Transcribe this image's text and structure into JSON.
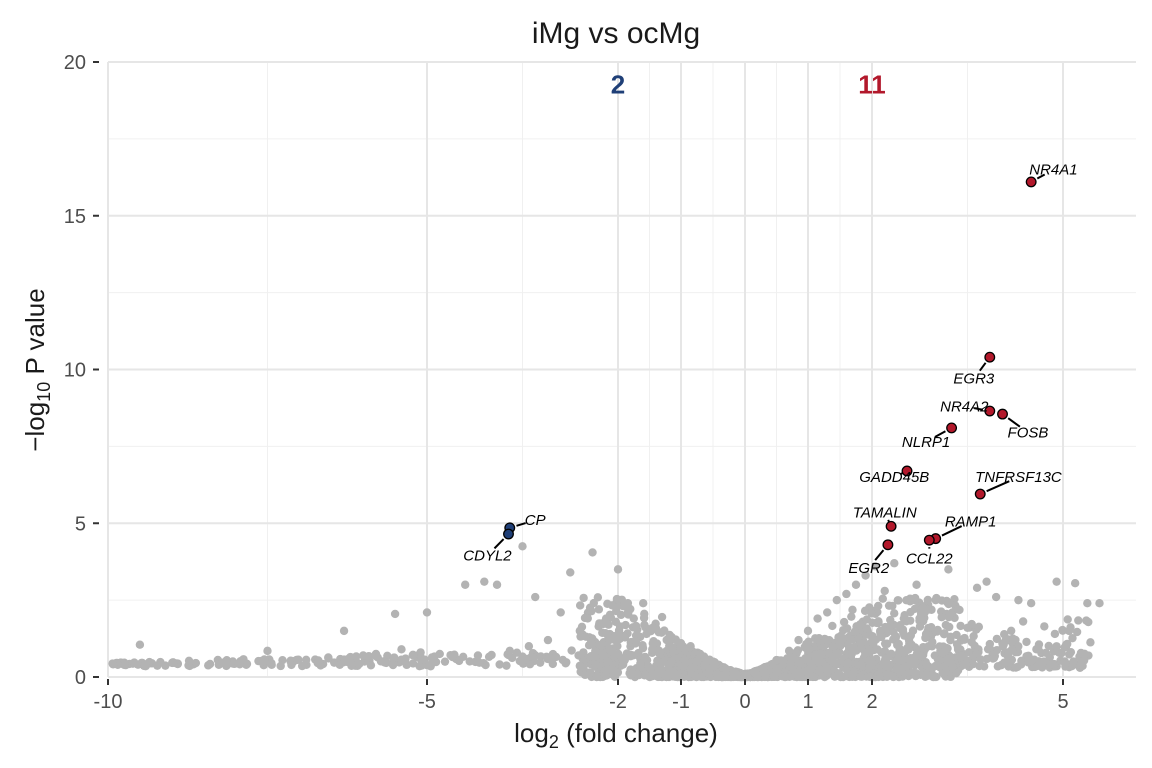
{
  "chart_data": {
    "type": "scatter",
    "title": "iMg vs ocMg",
    "xlabel": {
      "base": "log",
      "sub": "2",
      "rest": " (fold change)"
    },
    "ylabel": {
      "base": "−log",
      "sub": "10",
      "rest": " P value"
    },
    "xlim": [
      -10.2,
      6.2
    ],
    "ylim": [
      0,
      20
    ],
    "x_major_ticks": [
      -10,
      -5,
      -2,
      -1,
      0,
      1,
      2,
      5
    ],
    "x_minor_ticks": [
      -7.5,
      -3.5,
      -1.5,
      -0.5,
      0.5,
      1.5,
      3.5
    ],
    "y_major_ticks": [
      0,
      5,
      10,
      15,
      20
    ],
    "y_minor_ticks": [
      2.5,
      7.5,
      12.5,
      17.5
    ],
    "grid": true,
    "legend": "none",
    "colors": {
      "up": "#b2182b",
      "down": "#1f3f77",
      "ns": "#b3b3b3"
    },
    "counts": [
      {
        "text": "2",
        "x": -2,
        "y": 19.3,
        "color": "#1f3f77"
      },
      {
        "text": "11",
        "x": 2,
        "y": 19.3,
        "color": "#b2182b"
      }
    ],
    "series": [
      {
        "name": "up",
        "color": "#b2182b",
        "points": [
          {
            "gene": "NR4A1",
            "x": 4.5,
            "y": 16.1,
            "label": "NR4A1",
            "lx": 4.85,
            "ly": 16.5
          },
          {
            "gene": "EGR3",
            "x": 3.85,
            "y": 10.4,
            "label": "EGR3",
            "lx": 3.6,
            "ly": 9.7
          },
          {
            "gene": "NR4A2",
            "x": 3.85,
            "y": 8.65,
            "label": "NR4A2",
            "lx": 3.45,
            "ly": 8.8
          },
          {
            "gene": "FOSB",
            "x": 4.05,
            "y": 8.55,
            "label": "FOSB",
            "lx": 4.45,
            "ly": 7.95
          },
          {
            "gene": "NLRP1",
            "x": 3.25,
            "y": 8.1,
            "label": "NLRP1",
            "lx": 2.85,
            "ly": 7.65
          },
          {
            "gene": "GADD45B",
            "x": 2.55,
            "y": 6.7,
            "label": "GADD45B",
            "lx": 2.35,
            "ly": 6.5
          },
          {
            "gene": "TNFRSF13C",
            "x": 3.7,
            "y": 5.95,
            "label": "TNFRSF13C",
            "lx": 4.3,
            "ly": 6.5
          },
          {
            "gene": "TAMALIN",
            "x": 2.3,
            "y": 4.9,
            "label": "TAMALIN",
            "lx": 2.2,
            "ly": 5.35
          },
          {
            "gene": "RAMP1",
            "x": 3.0,
            "y": 4.5,
            "label": "RAMP1",
            "lx": 3.55,
            "ly": 5.05
          },
          {
            "gene": "CCL22",
            "x": 2.9,
            "y": 4.45,
            "label": "CCL22",
            "lx": 2.9,
            "ly": 3.85
          },
          {
            "gene": "EGR2",
            "x": 2.25,
            "y": 4.3,
            "label": "EGR2",
            "lx": 1.95,
            "ly": 3.55
          }
        ]
      },
      {
        "name": "down",
        "color": "#1f3f77",
        "points": [
          {
            "gene": "CP",
            "x": -3.7,
            "y": 4.85,
            "label": "CP",
            "lx": -3.3,
            "ly": 5.1
          },
          {
            "gene": "CDYL2",
            "x": -3.72,
            "y": 4.65,
            "label": "CDYL2",
            "lx": -4.05,
            "ly": 3.95
          }
        ]
      },
      {
        "name": "ns",
        "color": "#b3b3b3",
        "points": [
          {
            "x": -9.5,
            "y": 1.05
          },
          {
            "x": -7.5,
            "y": 0.85
          },
          {
            "x": -6.3,
            "y": 1.5
          },
          {
            "x": -6.2,
            "y": 0.65
          },
          {
            "x": -6.0,
            "y": 0.7
          },
          {
            "x": -5.8,
            "y": 0.75
          },
          {
            "x": -5.5,
            "y": 2.05
          },
          {
            "x": -5.4,
            "y": 0.9
          },
          {
            "x": -5.1,
            "y": 0.8
          },
          {
            "x": -5.0,
            "y": 2.1
          },
          {
            "x": -4.8,
            "y": 0.75
          },
          {
            "x": -4.6,
            "y": 0.65
          },
          {
            "x": -4.4,
            "y": 3.0
          },
          {
            "x": -4.2,
            "y": 0.7
          },
          {
            "x": -4.1,
            "y": 3.1
          },
          {
            "x": -3.9,
            "y": 3.0
          },
          {
            "x": -3.7,
            "y": 0.85
          },
          {
            "x": -3.5,
            "y": 4.25
          },
          {
            "x": -3.4,
            "y": 1.0
          },
          {
            "x": -3.3,
            "y": 2.6
          },
          {
            "x": -3.1,
            "y": 1.2
          },
          {
            "x": -2.9,
            "y": 2.1
          },
          {
            "x": -2.75,
            "y": 3.4
          },
          {
            "x": -2.6,
            "y": 1.5
          },
          {
            "x": -2.4,
            "y": 4.05
          },
          {
            "x": -2.3,
            "y": 2.2
          },
          {
            "x": -2.15,
            "y": 1.7
          },
          {
            "x": -2.0,
            "y": 3.5
          },
          {
            "x": -1.9,
            "y": 2.3
          },
          {
            "x": -1.75,
            "y": 1.9
          },
          {
            "x": -1.6,
            "y": 2.4
          },
          {
            "x": -1.45,
            "y": 1.6
          },
          {
            "x": -1.3,
            "y": 1.95
          },
          {
            "x": -1.15,
            "y": 1.3
          },
          {
            "x": -1.0,
            "y": 1.1
          },
          {
            "x": -0.85,
            "y": 1.0
          },
          {
            "x": -0.7,
            "y": 0.75
          },
          {
            "x": -0.5,
            "y": 0.5
          },
          {
            "x": -0.3,
            "y": 0.25
          },
          {
            "x": -0.15,
            "y": 0.12
          },
          {
            "x": 0.0,
            "y": 0.03
          },
          {
            "x": 0.15,
            "y": 0.15
          },
          {
            "x": 0.3,
            "y": 0.3
          },
          {
            "x": 0.5,
            "y": 0.55
          },
          {
            "x": 0.7,
            "y": 0.85
          },
          {
            "x": 0.85,
            "y": 1.2
          },
          {
            "x": 1.0,
            "y": 1.5
          },
          {
            "x": 1.15,
            "y": 1.9
          },
          {
            "x": 1.3,
            "y": 2.1
          },
          {
            "x": 1.45,
            "y": 2.5
          },
          {
            "x": 1.6,
            "y": 2.7
          },
          {
            "x": 1.75,
            "y": 3.0
          },
          {
            "x": 1.9,
            "y": 3.3
          },
          {
            "x": 2.05,
            "y": 3.6
          },
          {
            "x": 2.2,
            "y": 2.8
          },
          {
            "x": 2.35,
            "y": 3.7
          },
          {
            "x": 2.5,
            "y": 1.9
          },
          {
            "x": 2.7,
            "y": 3.0
          },
          {
            "x": 2.85,
            "y": 1.4
          },
          {
            "x": 3.0,
            "y": 2.5
          },
          {
            "x": 3.2,
            "y": 3.5
          },
          {
            "x": 3.35,
            "y": 2.2
          },
          {
            "x": 3.5,
            "y": 1.6
          },
          {
            "x": 3.65,
            "y": 2.9
          },
          {
            "x": 3.8,
            "y": 3.1
          },
          {
            "x": 3.95,
            "y": 2.6
          },
          {
            "x": 4.1,
            "y": 1.2
          },
          {
            "x": 4.3,
            "y": 2.5
          },
          {
            "x": 4.5,
            "y": 2.4
          },
          {
            "x": 4.7,
            "y": 0.5
          },
          {
            "x": 4.9,
            "y": 3.1
          },
          {
            "x": 5.1,
            "y": 1.5
          },
          {
            "x": 5.2,
            "y": 3.05
          },
          {
            "x": 5.4,
            "y": 2.4
          },
          {
            "x": 5.6,
            "y": 2.4
          },
          {
            "x": 4.2,
            "y": 0.9
          },
          {
            "x": 3.9,
            "y": 0.6
          },
          {
            "x": 3.4,
            "y": 0.7
          }
        ]
      }
    ]
  }
}
